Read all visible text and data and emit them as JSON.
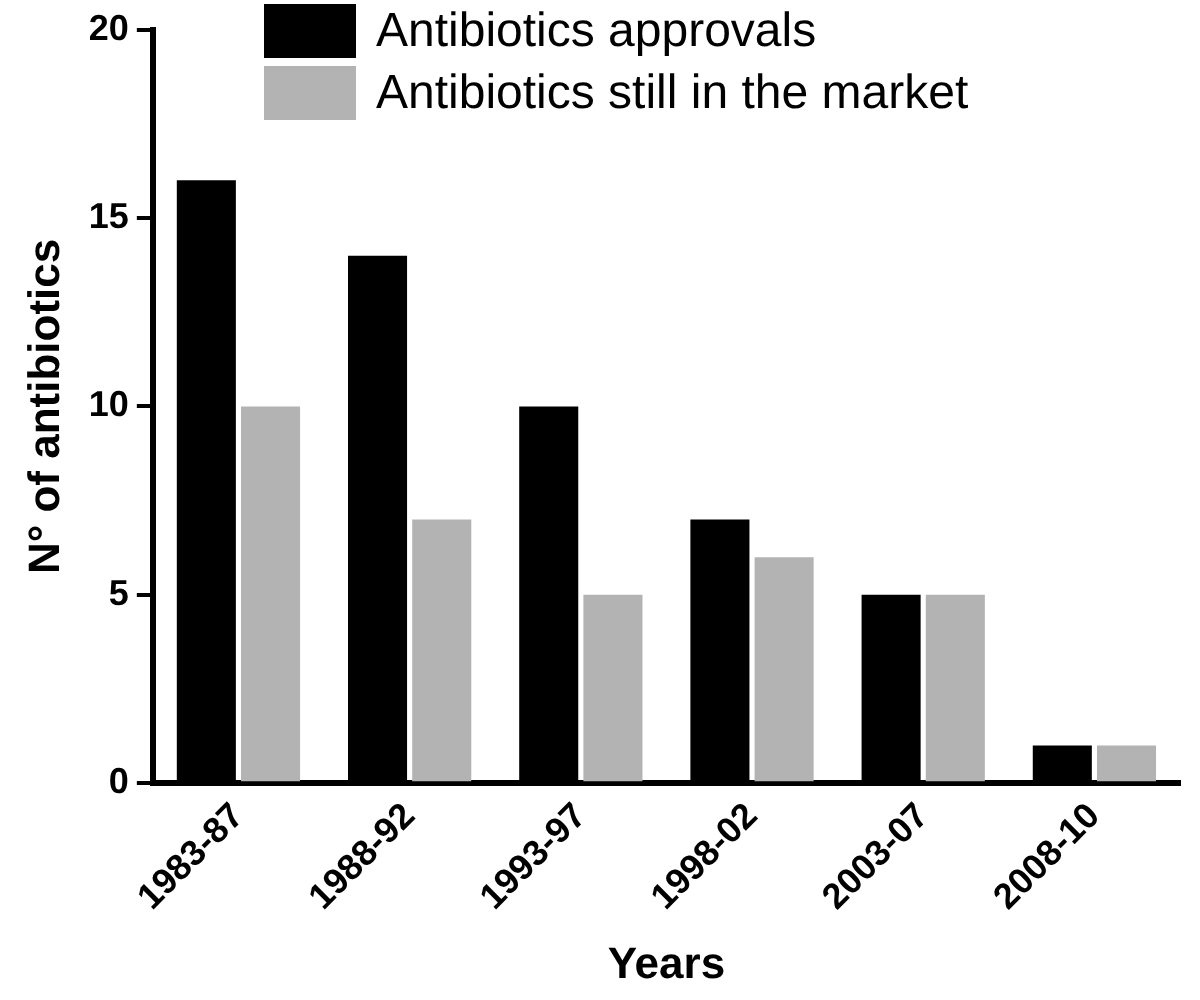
{
  "chart_data": {
    "type": "bar",
    "xlabel": "Years",
    "ylabel": "N° of antibiotics",
    "categories": [
      "1983-87",
      "1988-92",
      "1993-97",
      "1998-02",
      "2003-07",
      "2008-10"
    ],
    "series": [
      {
        "name": "Antibiotics approvals",
        "color": "#000000",
        "values": [
          16,
          14,
          10,
          7,
          5,
          1
        ]
      },
      {
        "name": "Antibiotics still in the market",
        "color": "#b3b3b3",
        "values": [
          10,
          7,
          5,
          6,
          5,
          1
        ]
      }
    ],
    "ylim": [
      0,
      20
    ],
    "yticks": [
      0,
      5,
      10,
      15,
      20
    ],
    "grid": false,
    "legend": "top"
  }
}
